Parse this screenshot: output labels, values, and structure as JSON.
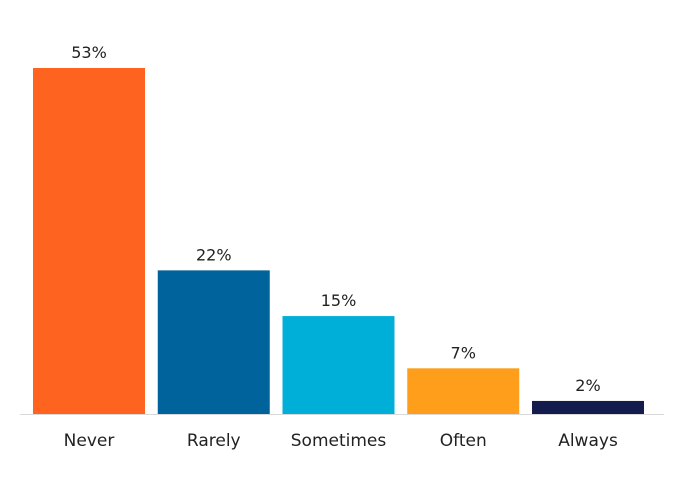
{
  "chart_data": {
    "type": "bar",
    "categories": [
      "Never",
      "Rarely",
      "Sometimes",
      "Often",
      "Always"
    ],
    "values": [
      53,
      22,
      15,
      7,
      2
    ],
    "value_labels": [
      "53%",
      "22%",
      "15%",
      "7%",
      "2%"
    ],
    "colors": [
      "#ff6320",
      "#00639b",
      "#00afd8",
      "#ff9e1b",
      "#141b4d"
    ],
    "ylim": [
      0,
      53
    ],
    "grid": false,
    "legend": "none"
  }
}
